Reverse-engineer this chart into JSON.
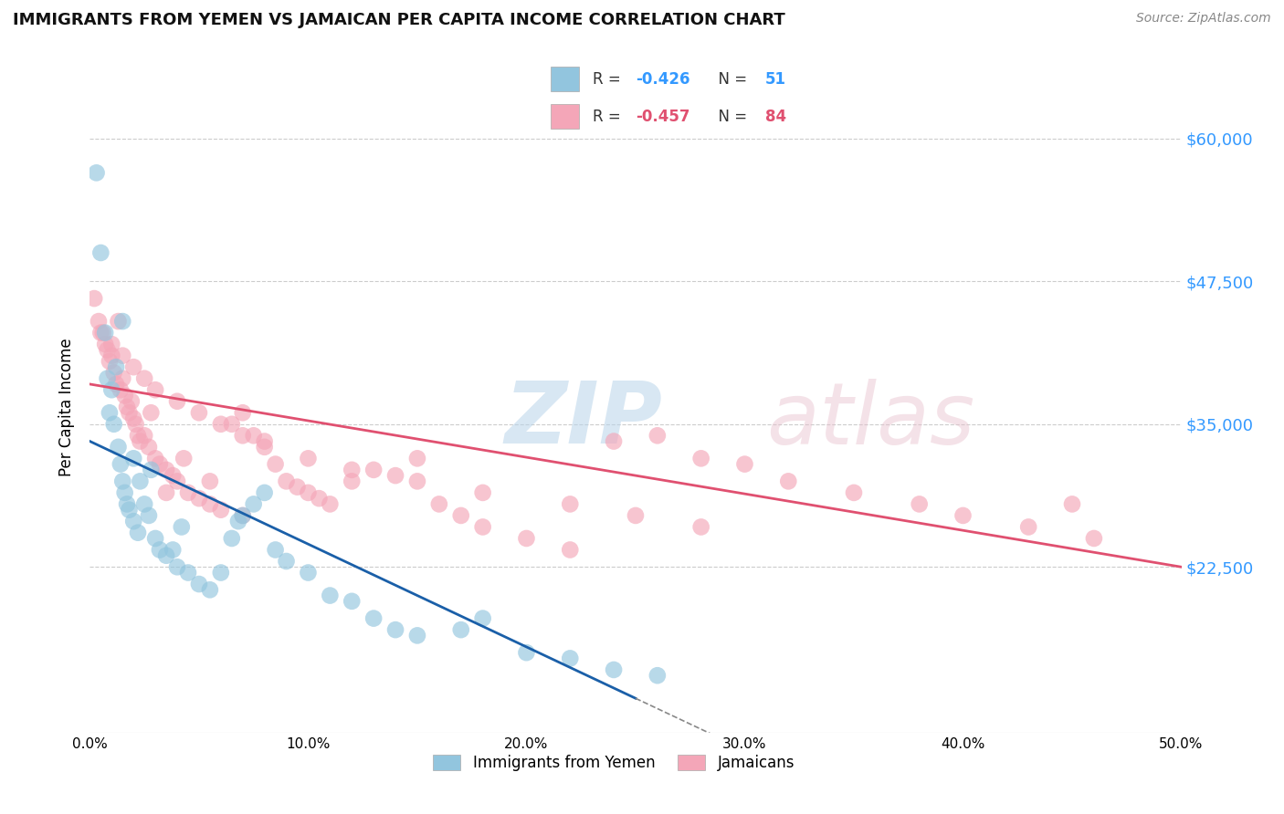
{
  "title": "IMMIGRANTS FROM YEMEN VS JAMAICAN PER CAPITA INCOME CORRELATION CHART",
  "source": "Source: ZipAtlas.com",
  "ylabel": "Per Capita Income",
  "xlim": [
    0.0,
    50.0
  ],
  "ylim": [
    8000,
    65000
  ],
  "yticks": [
    22500,
    35000,
    47500,
    60000
  ],
  "ytick_labels": [
    "$22,500",
    "$35,000",
    "$47,500",
    "$60,000"
  ],
  "xticks": [
    0.0,
    10.0,
    20.0,
    30.0,
    40.0,
    50.0
  ],
  "xtick_labels": [
    "0.0%",
    "10.0%",
    "20.0%",
    "30.0%",
    "40.0%",
    "50.0%"
  ],
  "legend_r1_val": "-0.426",
  "legend_n1_val": "51",
  "legend_r2_val": "-0.457",
  "legend_n2_val": "84",
  "label1": "Immigrants from Yemen",
  "label2": "Jamaicans",
  "color1": "#92c5de",
  "color2": "#f4a6b8",
  "trend_color1": "#1a5fa8",
  "trend_color2": "#e05070",
  "background_color": "#ffffff",
  "blue_trend_x0": 0.0,
  "blue_trend_y0": 33500,
  "blue_trend_x1": 25.0,
  "blue_trend_y1": 11000,
  "blue_dash_x0": 25.0,
  "blue_dash_x1": 35.0,
  "pink_trend_x0": 0.0,
  "pink_trend_y0": 38500,
  "pink_trend_x1": 50.0,
  "pink_trend_y1": 22500,
  "blue_points_x": [
    0.3,
    0.5,
    0.7,
    0.8,
    0.9,
    1.0,
    1.1,
    1.2,
    1.3,
    1.4,
    1.5,
    1.6,
    1.7,
    1.8,
    2.0,
    2.2,
    2.3,
    2.5,
    2.7,
    3.0,
    3.2,
    3.5,
    3.8,
    4.0,
    4.5,
    5.0,
    5.5,
    6.0,
    6.5,
    7.0,
    7.5,
    8.0,
    8.5,
    9.0,
    10.0,
    11.0,
    12.0,
    13.0,
    14.0,
    15.0,
    17.0,
    18.0,
    20.0,
    22.0,
    24.0,
    26.0,
    2.0,
    2.8,
    4.2,
    6.8,
    1.5
  ],
  "blue_points_y": [
    57000,
    50000,
    43000,
    39000,
    36000,
    38000,
    35000,
    40000,
    33000,
    31500,
    30000,
    29000,
    28000,
    27500,
    26500,
    25500,
    30000,
    28000,
    27000,
    25000,
    24000,
    23500,
    24000,
    22500,
    22000,
    21000,
    20500,
    22000,
    25000,
    27000,
    28000,
    29000,
    24000,
    23000,
    22000,
    20000,
    19500,
    18000,
    17000,
    16500,
    17000,
    18000,
    15000,
    14500,
    13500,
    13000,
    32000,
    31000,
    26000,
    26500,
    44000
  ],
  "pink_points_x": [
    0.2,
    0.4,
    0.6,
    0.7,
    0.8,
    0.9,
    1.0,
    1.1,
    1.2,
    1.3,
    1.4,
    1.5,
    1.6,
    1.7,
    1.8,
    1.9,
    2.0,
    2.1,
    2.2,
    2.3,
    2.5,
    2.7,
    3.0,
    3.2,
    3.5,
    3.8,
    4.0,
    4.3,
    4.5,
    5.0,
    5.5,
    6.0,
    6.5,
    7.0,
    7.5,
    8.0,
    8.5,
    9.0,
    9.5,
    10.0,
    10.5,
    11.0,
    12.0,
    13.0,
    14.0,
    15.0,
    16.0,
    17.0,
    18.0,
    20.0,
    22.0,
    24.0,
    26.0,
    28.0,
    30.0,
    32.0,
    35.0,
    38.0,
    40.0,
    43.0,
    45.0,
    46.0,
    0.5,
    1.0,
    1.5,
    2.0,
    2.5,
    3.0,
    4.0,
    5.0,
    6.0,
    7.0,
    8.0,
    10.0,
    12.0,
    15.0,
    18.0,
    22.0,
    25.0,
    28.0,
    2.8,
    3.5,
    5.5,
    7.0
  ],
  "pink_points_y": [
    46000,
    44000,
    43000,
    42000,
    41500,
    40500,
    41000,
    39500,
    38500,
    44000,
    38000,
    39000,
    37500,
    36500,
    36000,
    37000,
    35500,
    35000,
    34000,
    33500,
    34000,
    33000,
    32000,
    31500,
    31000,
    30500,
    30000,
    32000,
    29000,
    28500,
    28000,
    27500,
    35000,
    36000,
    34000,
    33500,
    31500,
    30000,
    29500,
    29000,
    28500,
    28000,
    30000,
    31000,
    30500,
    32000,
    28000,
    27000,
    26000,
    25000,
    24000,
    33500,
    34000,
    32000,
    31500,
    30000,
    29000,
    28000,
    27000,
    26000,
    28000,
    25000,
    43000,
    42000,
    41000,
    40000,
    39000,
    38000,
    37000,
    36000,
    35000,
    34000,
    33000,
    32000,
    31000,
    30000,
    29000,
    28000,
    27000,
    26000,
    36000,
    29000,
    30000,
    27000
  ]
}
